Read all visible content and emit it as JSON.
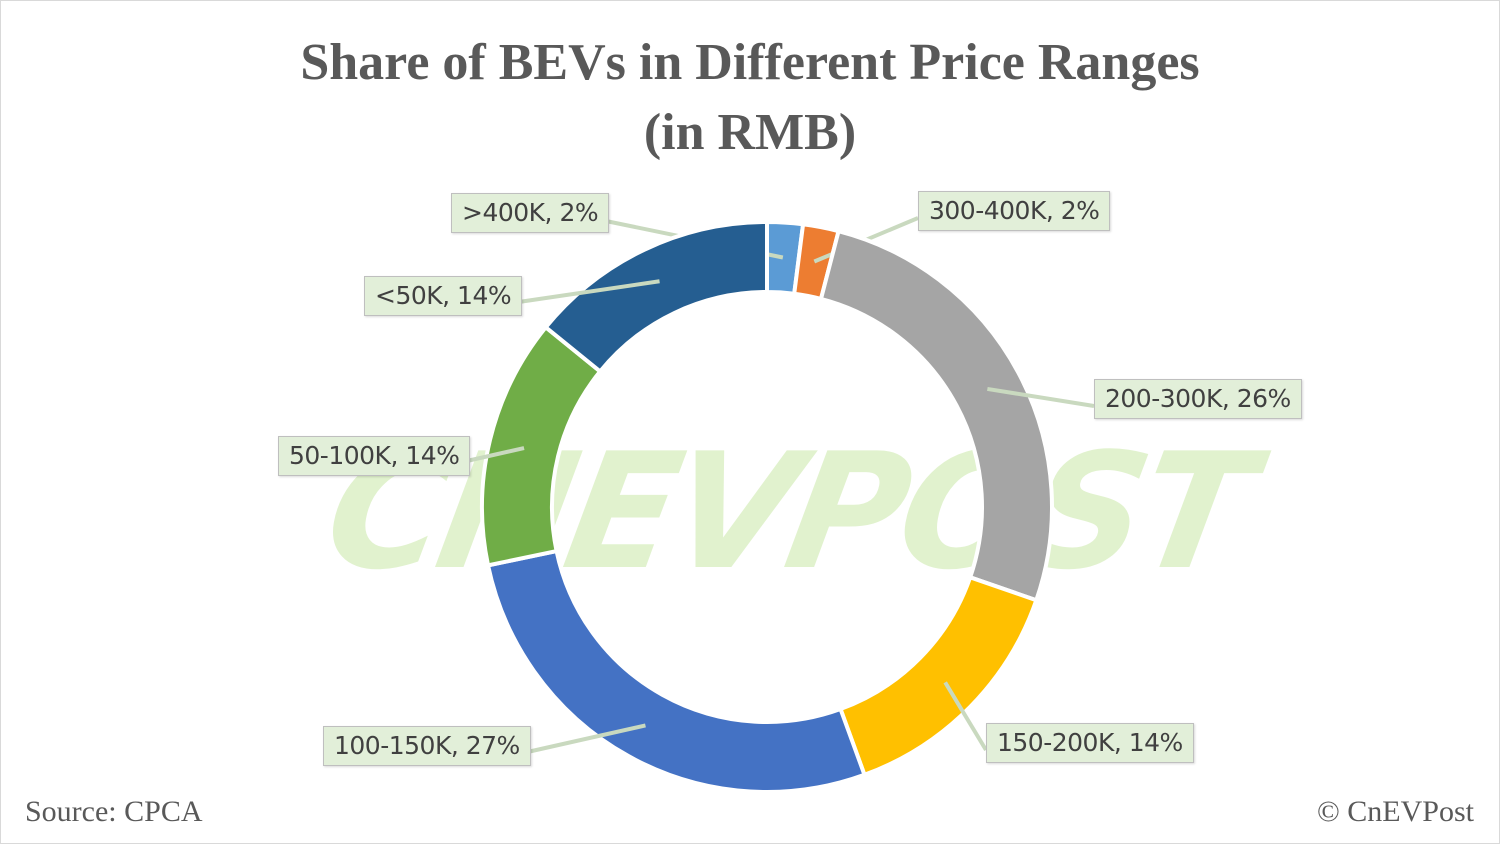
{
  "title_line1": "Share of BEVs in Different Price Ranges",
  "title_line2": "(in RMB)",
  "watermark": "CNEVPOST",
  "footer": {
    "source": "Source: CPCA",
    "copyright": "© CnEVPost"
  },
  "chart_data": {
    "type": "pie",
    "subtype": "donut",
    "title": "Share of BEVs in Different Price Ranges (in RMB)",
    "categories": [
      ">400K",
      "300-400K",
      "200-300K",
      "150-200K",
      "100-150K",
      "50-100K",
      "<50K"
    ],
    "values": [
      2,
      2,
      26,
      14,
      27,
      14,
      14
    ],
    "unit": "%",
    "colors": [
      "#5b9bd5",
      "#ed7d31",
      "#a5a5a5",
      "#ffc000",
      "#4472c4",
      "#70ad47",
      "#255e91"
    ],
    "labels": [
      ">400K, 2%",
      "300-400K, 2%",
      "200-300K, 26%",
      "150-200K, 14%",
      "100-150K, 27%",
      "50-100K, 14%",
      "<50K, 14%"
    ],
    "legend": "none (data callouts)"
  }
}
